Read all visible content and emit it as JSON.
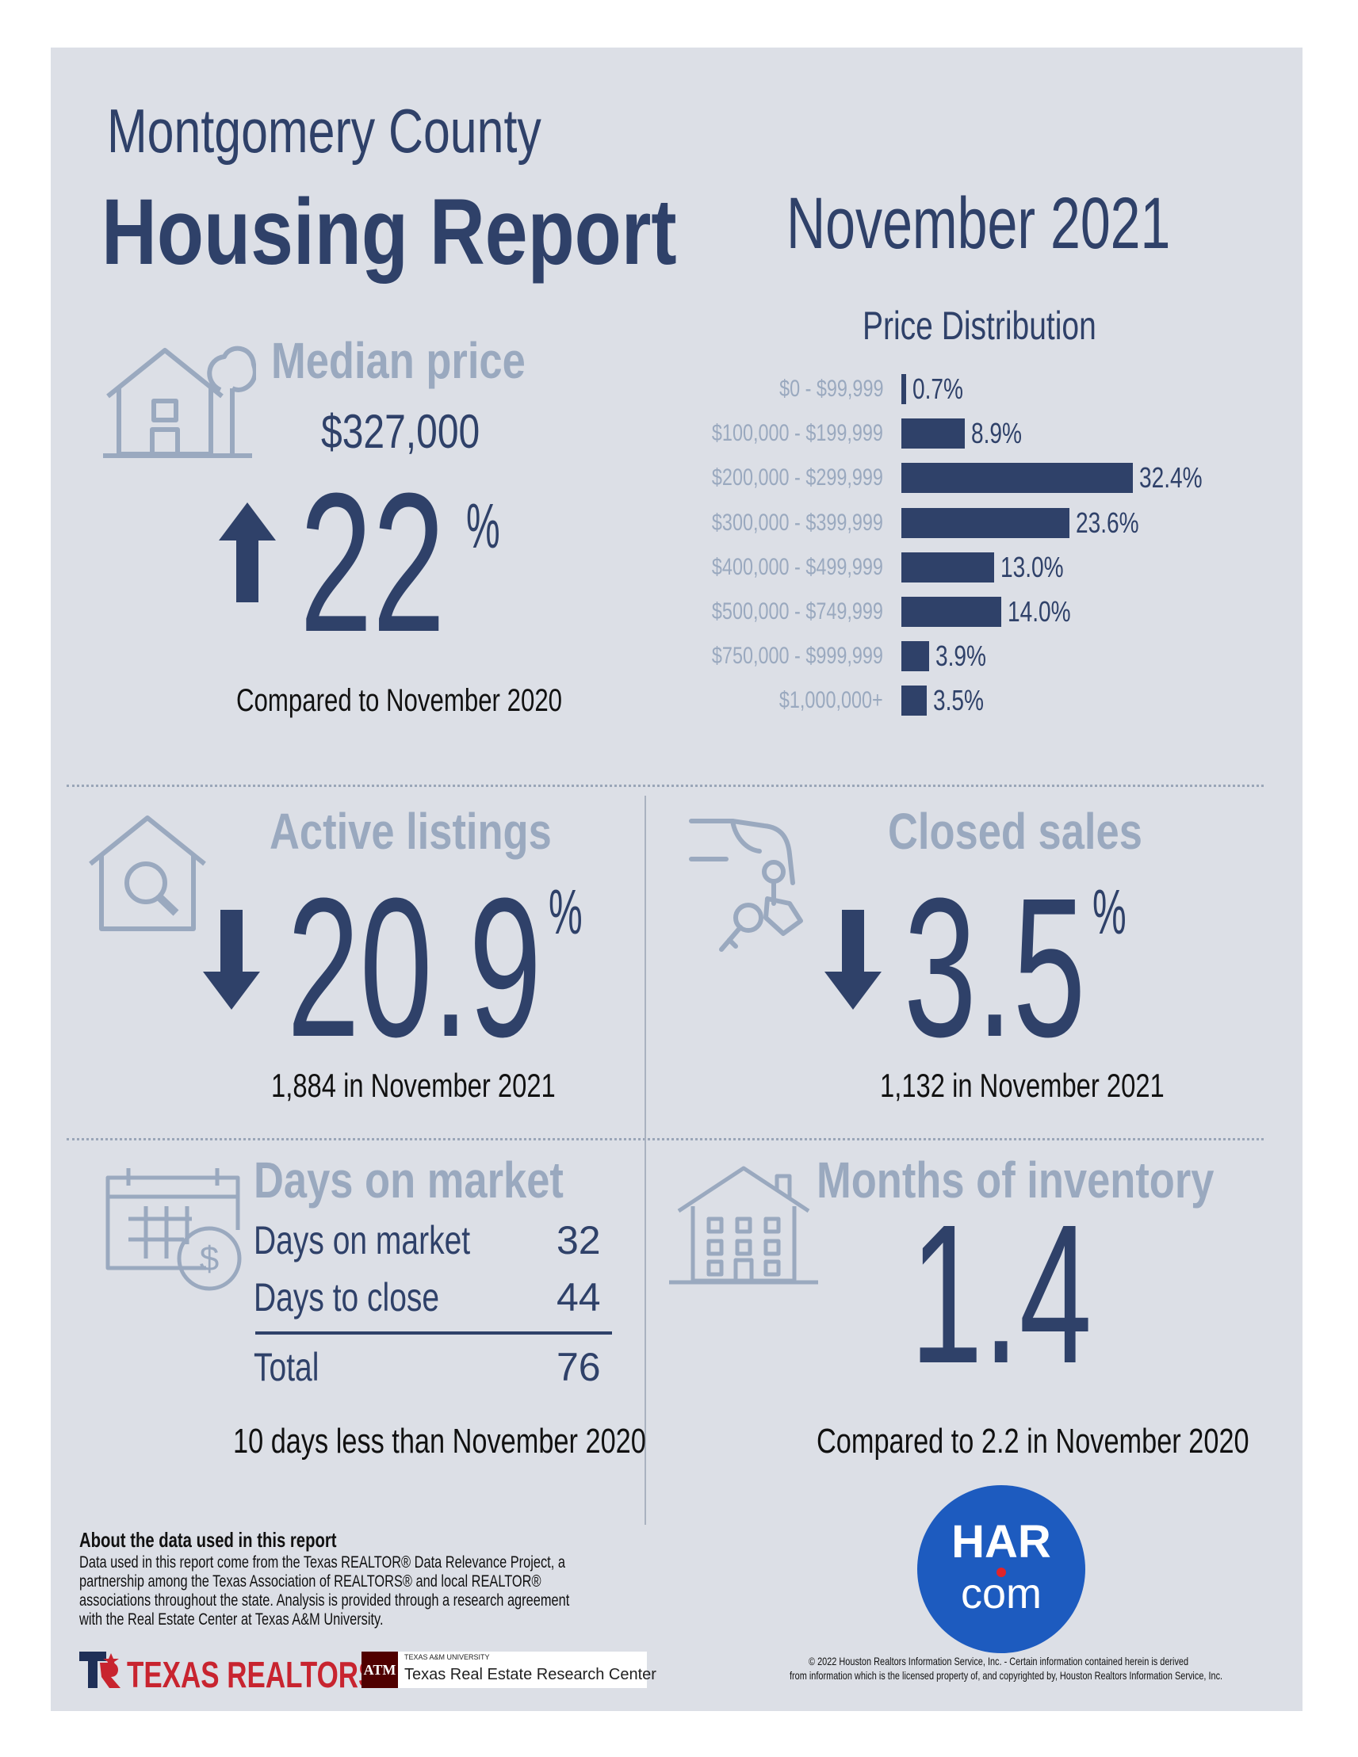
{
  "header": {
    "county": "Montgomery County",
    "report": "Housing Report",
    "period": "November 2021"
  },
  "median_price": {
    "title": "Median price",
    "value": "$327,000",
    "change_number": "22",
    "percent_sign": "%",
    "direction": "up",
    "caption": "Compared to November 2020"
  },
  "chart_data": {
    "type": "bar",
    "title": "Price Distribution",
    "categories": [
      "$0 - $99,999",
      "$100,000 - $199,999",
      "$200,000 - $299,999",
      "$300,000 - $399,999",
      "$400,000 - $499,999",
      "$500,000 - $749,999",
      "$750,000 - $999,999",
      "$1,000,000+"
    ],
    "values": [
      0.7,
      8.9,
      32.4,
      23.6,
      13.0,
      14.0,
      3.9,
      3.5
    ],
    "value_labels": [
      "0.7%",
      "8.9%",
      "32.4%",
      "23.6%",
      "13.0%",
      "14.0%",
      "3.9%",
      "3.5%"
    ],
    "orientation": "horizontal",
    "unit": "%",
    "grid": false
  },
  "active_listings": {
    "title": "Active listings",
    "change_number": "20.9",
    "percent_sign": "%",
    "direction": "down",
    "caption": "1,884 in November 2021"
  },
  "closed_sales": {
    "title": "Closed sales",
    "change_number": "3.5",
    "percent_sign": "%",
    "direction": "down",
    "caption": "1,132 in November 2021"
  },
  "days_on_market": {
    "title": "Days on market",
    "rows": [
      {
        "label": "Days on market",
        "value": "32"
      },
      {
        "label": "Days to close",
        "value": "44"
      }
    ],
    "total_label": "Total",
    "total_value": "76",
    "caption": "10 days less than November 2020"
  },
  "months_inventory": {
    "title": "Months of inventory",
    "value": "1.4",
    "caption": "Compared to 2.2 in November 2020"
  },
  "logo": {
    "line1": "HAR",
    "line2": "com",
    "color": "#1d5bbf",
    "dot_color": "#e0242a"
  },
  "about": {
    "heading": "About the data used in this report",
    "lines": [
      "Data used in this report come from the Texas REALTOR® Data Relevance Project, a",
      "partnership among the Texas Association of REALTORS® and local REALTOR®",
      "associations throughout the state. Analysis is provided through a research agreement",
      "with the Real Estate Center at Texas A&M University."
    ]
  },
  "footer": {
    "texas_realtors": "TEXAS REALTORS",
    "tamu_small": "TEXAS A&M UNIVERSITY",
    "tamu_center": "Texas Real Estate Research Center",
    "copyright_line1": "© 2022 Houston Realtors Information Service, Inc. - Certain information contained herein is derived",
    "copyright_line2": "from information which is the licensed property of, and copyrighted by, Houston Realtors Information Service, Inc."
  },
  "colors": {
    "navy": "#2f4169",
    "muted": "#9aa9bf",
    "panel": "#dcdfe6",
    "texas_red": "#c8242f"
  }
}
